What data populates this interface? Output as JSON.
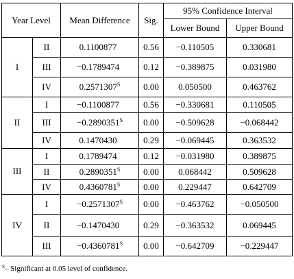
{
  "headers": {
    "year_level": "Year Level",
    "mean_difference": "Mean Difference",
    "sig": "Sig.",
    "ci": "95% Confidence Interval",
    "lower": "Lower Bound",
    "upper": "Upper Bound"
  },
  "significance_mark": "S",
  "groups": [
    {
      "level": "I",
      "rows": [
        {
          "compare": "II",
          "diff": "0.1100877",
          "sig_mark": false,
          "sig": "0.56",
          "lower": "-0.110505",
          "upper": "0.330681"
        },
        {
          "compare": "III",
          "diff": "-0.1789474",
          "sig_mark": false,
          "sig": "0.12",
          "lower": "-0.389875",
          "upper": "0.031980"
        },
        {
          "compare": "IV",
          "diff": "0.2571307",
          "sig_mark": true,
          "sig": "0.00",
          "lower": "0.050500",
          "upper": "0.463762"
        }
      ]
    },
    {
      "level": "II",
      "rows": [
        {
          "compare": "I",
          "diff": "-0.1100877",
          "sig_mark": false,
          "sig": "0.56",
          "lower": "-0.330681",
          "upper": "0.110505"
        },
        {
          "compare": "III",
          "diff": "-0.2890351",
          "sig_mark": true,
          "sig": "0.00",
          "lower": "-0.509628",
          "upper": "-0.068442"
        },
        {
          "compare": "IV",
          "diff": "0.1470430",
          "sig_mark": false,
          "sig": "0.29",
          "lower": "-0.069445",
          "upper": "0.363532"
        }
      ]
    },
    {
      "level": "III",
      "rows": [
        {
          "compare": "I",
          "diff": "0.1789474",
          "sig_mark": false,
          "sig": "0.12",
          "lower": "-0.031980",
          "upper": "0.389875"
        },
        {
          "compare": "II",
          "diff": "0.2890351",
          "sig_mark": true,
          "sig": "0.00",
          "lower": "0.068442",
          "upper": "0.509628"
        },
        {
          "compare": "IV",
          "diff": "0.4360781",
          "sig_mark": true,
          "sig": "0.00",
          "lower": "0.229447",
          "upper": "0.642709"
        }
      ]
    },
    {
      "level": "IV",
      "rows": [
        {
          "compare": "I",
          "diff": "-0.2571307",
          "sig_mark": true,
          "sig": "0.00",
          "lower": "-0.463762",
          "upper": "-0.050500"
        },
        {
          "compare": "II",
          "diff": "-0.1470430",
          "sig_mark": false,
          "sig": "0.29",
          "lower": "-0.363532",
          "upper": "0.069445"
        },
        {
          "compare": "III",
          "diff": "-0.4360781",
          "sig_mark": true,
          "sig": "0.00",
          "lower": "-0.642709",
          "upper": "-0.229447"
        }
      ]
    }
  ],
  "footnote": {
    "mark": "S",
    "text": "– Significant at 0.05 level of confidence."
  }
}
